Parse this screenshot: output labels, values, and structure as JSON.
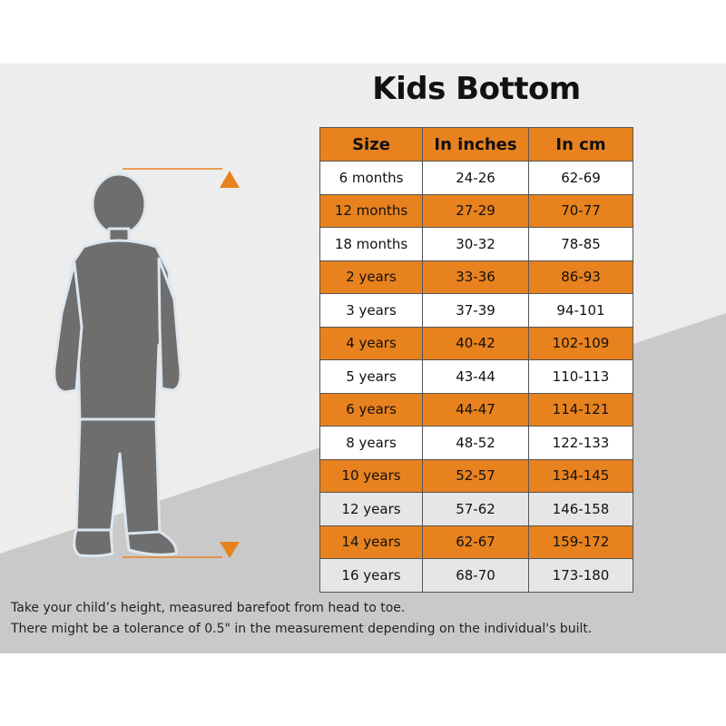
{
  "title": "Kids Bottom",
  "table": {
    "headers": [
      "Size",
      "In inches",
      "In cm"
    ],
    "rows": [
      {
        "size": "6 months",
        "inches": "24-26",
        "cm": "62-69"
      },
      {
        "size": "12 months",
        "inches": "27-29",
        "cm": "70-77"
      },
      {
        "size": "18 months",
        "inches": "30-32",
        "cm": "78-85"
      },
      {
        "size": "2 years",
        "inches": "33-36",
        "cm": "86-93"
      },
      {
        "size": "3 years",
        "inches": "37-39",
        "cm": "94-101"
      },
      {
        "size": "4 years",
        "inches": "40-42",
        "cm": "102-109"
      },
      {
        "size": "5 years",
        "inches": "43-44",
        "cm": "110-113"
      },
      {
        "size": "6 years",
        "inches": "44-47",
        "cm": "114-121"
      },
      {
        "size": "8 years",
        "inches": "48-52",
        "cm": "122-133"
      },
      {
        "size": "10 years",
        "inches": "52-57",
        "cm": "134-145"
      },
      {
        "size": "12 years",
        "inches": "57-62",
        "cm": "146-158"
      },
      {
        "size": "14 years",
        "inches": "62-67",
        "cm": "159-172"
      },
      {
        "size": "16 years",
        "inches": "68-70",
        "cm": "173-180"
      }
    ]
  },
  "notes": {
    "line1": "Take your child’s height, measured barefoot from head to toe.",
    "line2": "There might be a tolerance of 0.5\" in the measurement depending on the individual's built."
  },
  "colors": {
    "accent": "#e8821e",
    "figure": "#6e6e6e",
    "background": "#ededed"
  },
  "illustration": {
    "figure_icon": "child-silhouette-icon",
    "top_marker_icon": "triangle-up-icon",
    "bottom_marker_icon": "triangle-down-icon"
  }
}
